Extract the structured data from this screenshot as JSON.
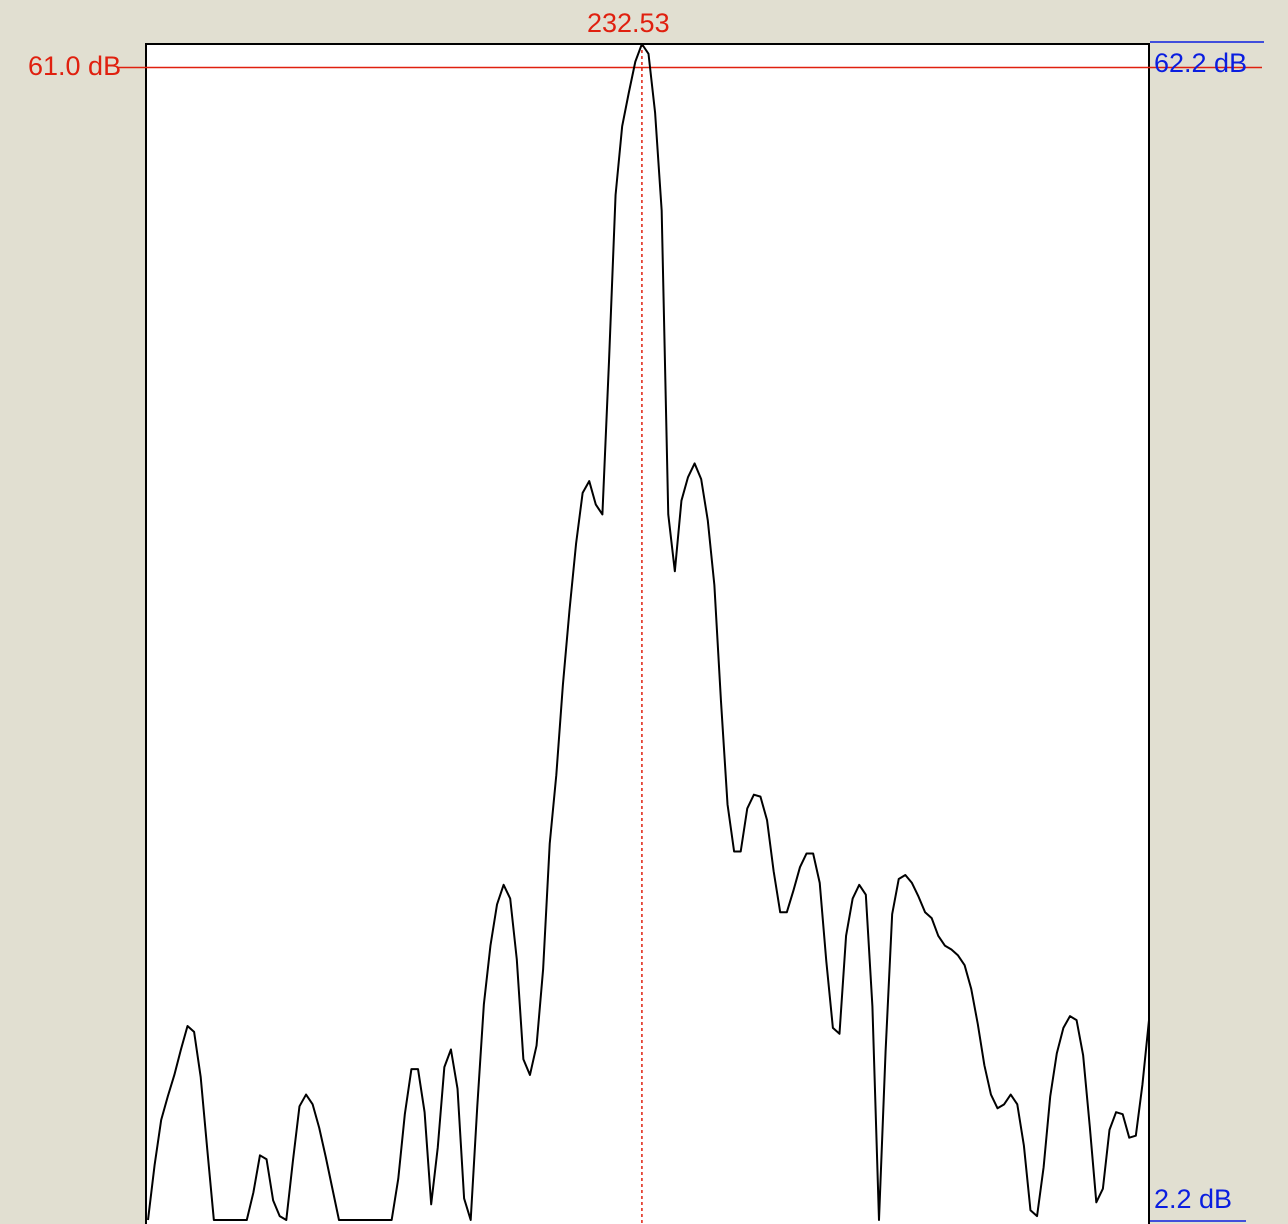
{
  "chart_data": {
    "type": "line",
    "cursor": {
      "x_label": "232.53",
      "level_label": "61.0 dB",
      "level_db": 61.0,
      "color": "#e0200f"
    },
    "right_axis": {
      "top_label": "62.2 dB",
      "bottom_label": "2.2 dB",
      "ylim": [
        2.2,
        62.2
      ],
      "color": "#0a1ee0"
    },
    "line_color": "#000000",
    "background": "#ffffff",
    "frame_background": "#e1dfd1",
    "grid": false,
    "legend": "none",
    "series": [
      {
        "values": [
          2.2,
          5.0,
          7.3,
          8.5,
          9.6,
          10.9,
          12.1,
          11.8,
          9.5,
          5.8,
          2.2,
          2.2,
          2.2,
          2.2,
          2.2,
          2.2,
          3.6,
          5.5,
          5.3,
          3.2,
          2.4,
          2.2,
          5.2,
          8.0,
          8.6,
          8.1,
          6.9,
          5.4,
          3.8,
          2.2,
          2.2,
          2.2,
          2.2,
          2.2,
          2.2,
          2.2,
          2.2,
          2.2,
          4.3,
          7.6,
          9.9,
          9.9,
          7.7,
          3.0,
          5.9,
          10.0,
          10.9,
          8.9,
          3.3,
          2.2,
          8.0,
          13.2,
          16.2,
          18.3,
          19.3,
          18.6,
          15.5,
          10.4,
          9.6,
          11.1,
          15.0,
          21.4,
          24.9,
          29.5,
          33.3,
          36.7,
          39.3,
          39.9,
          38.7,
          38.2,
          46.0,
          54.5,
          58.0,
          59.7,
          61.3,
          62.2,
          61.7,
          58.7,
          53.7,
          38.2,
          35.3,
          38.9,
          40.1,
          40.8,
          40.0,
          37.9,
          34.6,
          28.7,
          23.4,
          21.0,
          21.0,
          23.2,
          23.9,
          23.8,
          22.6,
          20.0,
          17.9,
          17.9,
          19.0,
          20.2,
          20.9,
          20.9,
          19.4,
          15.4,
          12.0,
          11.7,
          16.7,
          18.6,
          19.3,
          18.8,
          13.1,
          2.2,
          10.8,
          17.8,
          19.6,
          19.8,
          19.4,
          18.7,
          17.9,
          17.6,
          16.7,
          16.2,
          16.0,
          15.7,
          15.2,
          14.0,
          12.2,
          10.1,
          8.6,
          7.9,
          8.1,
          8.6,
          8.1,
          6.0,
          2.7,
          2.4,
          4.9,
          8.5,
          10.7,
          12.0,
          12.6,
          12.4,
          10.6,
          7.0,
          3.1,
          3.8,
          6.8,
          7.7,
          7.6,
          6.4,
          6.5,
          9.1,
          12.4
        ]
      }
    ]
  }
}
